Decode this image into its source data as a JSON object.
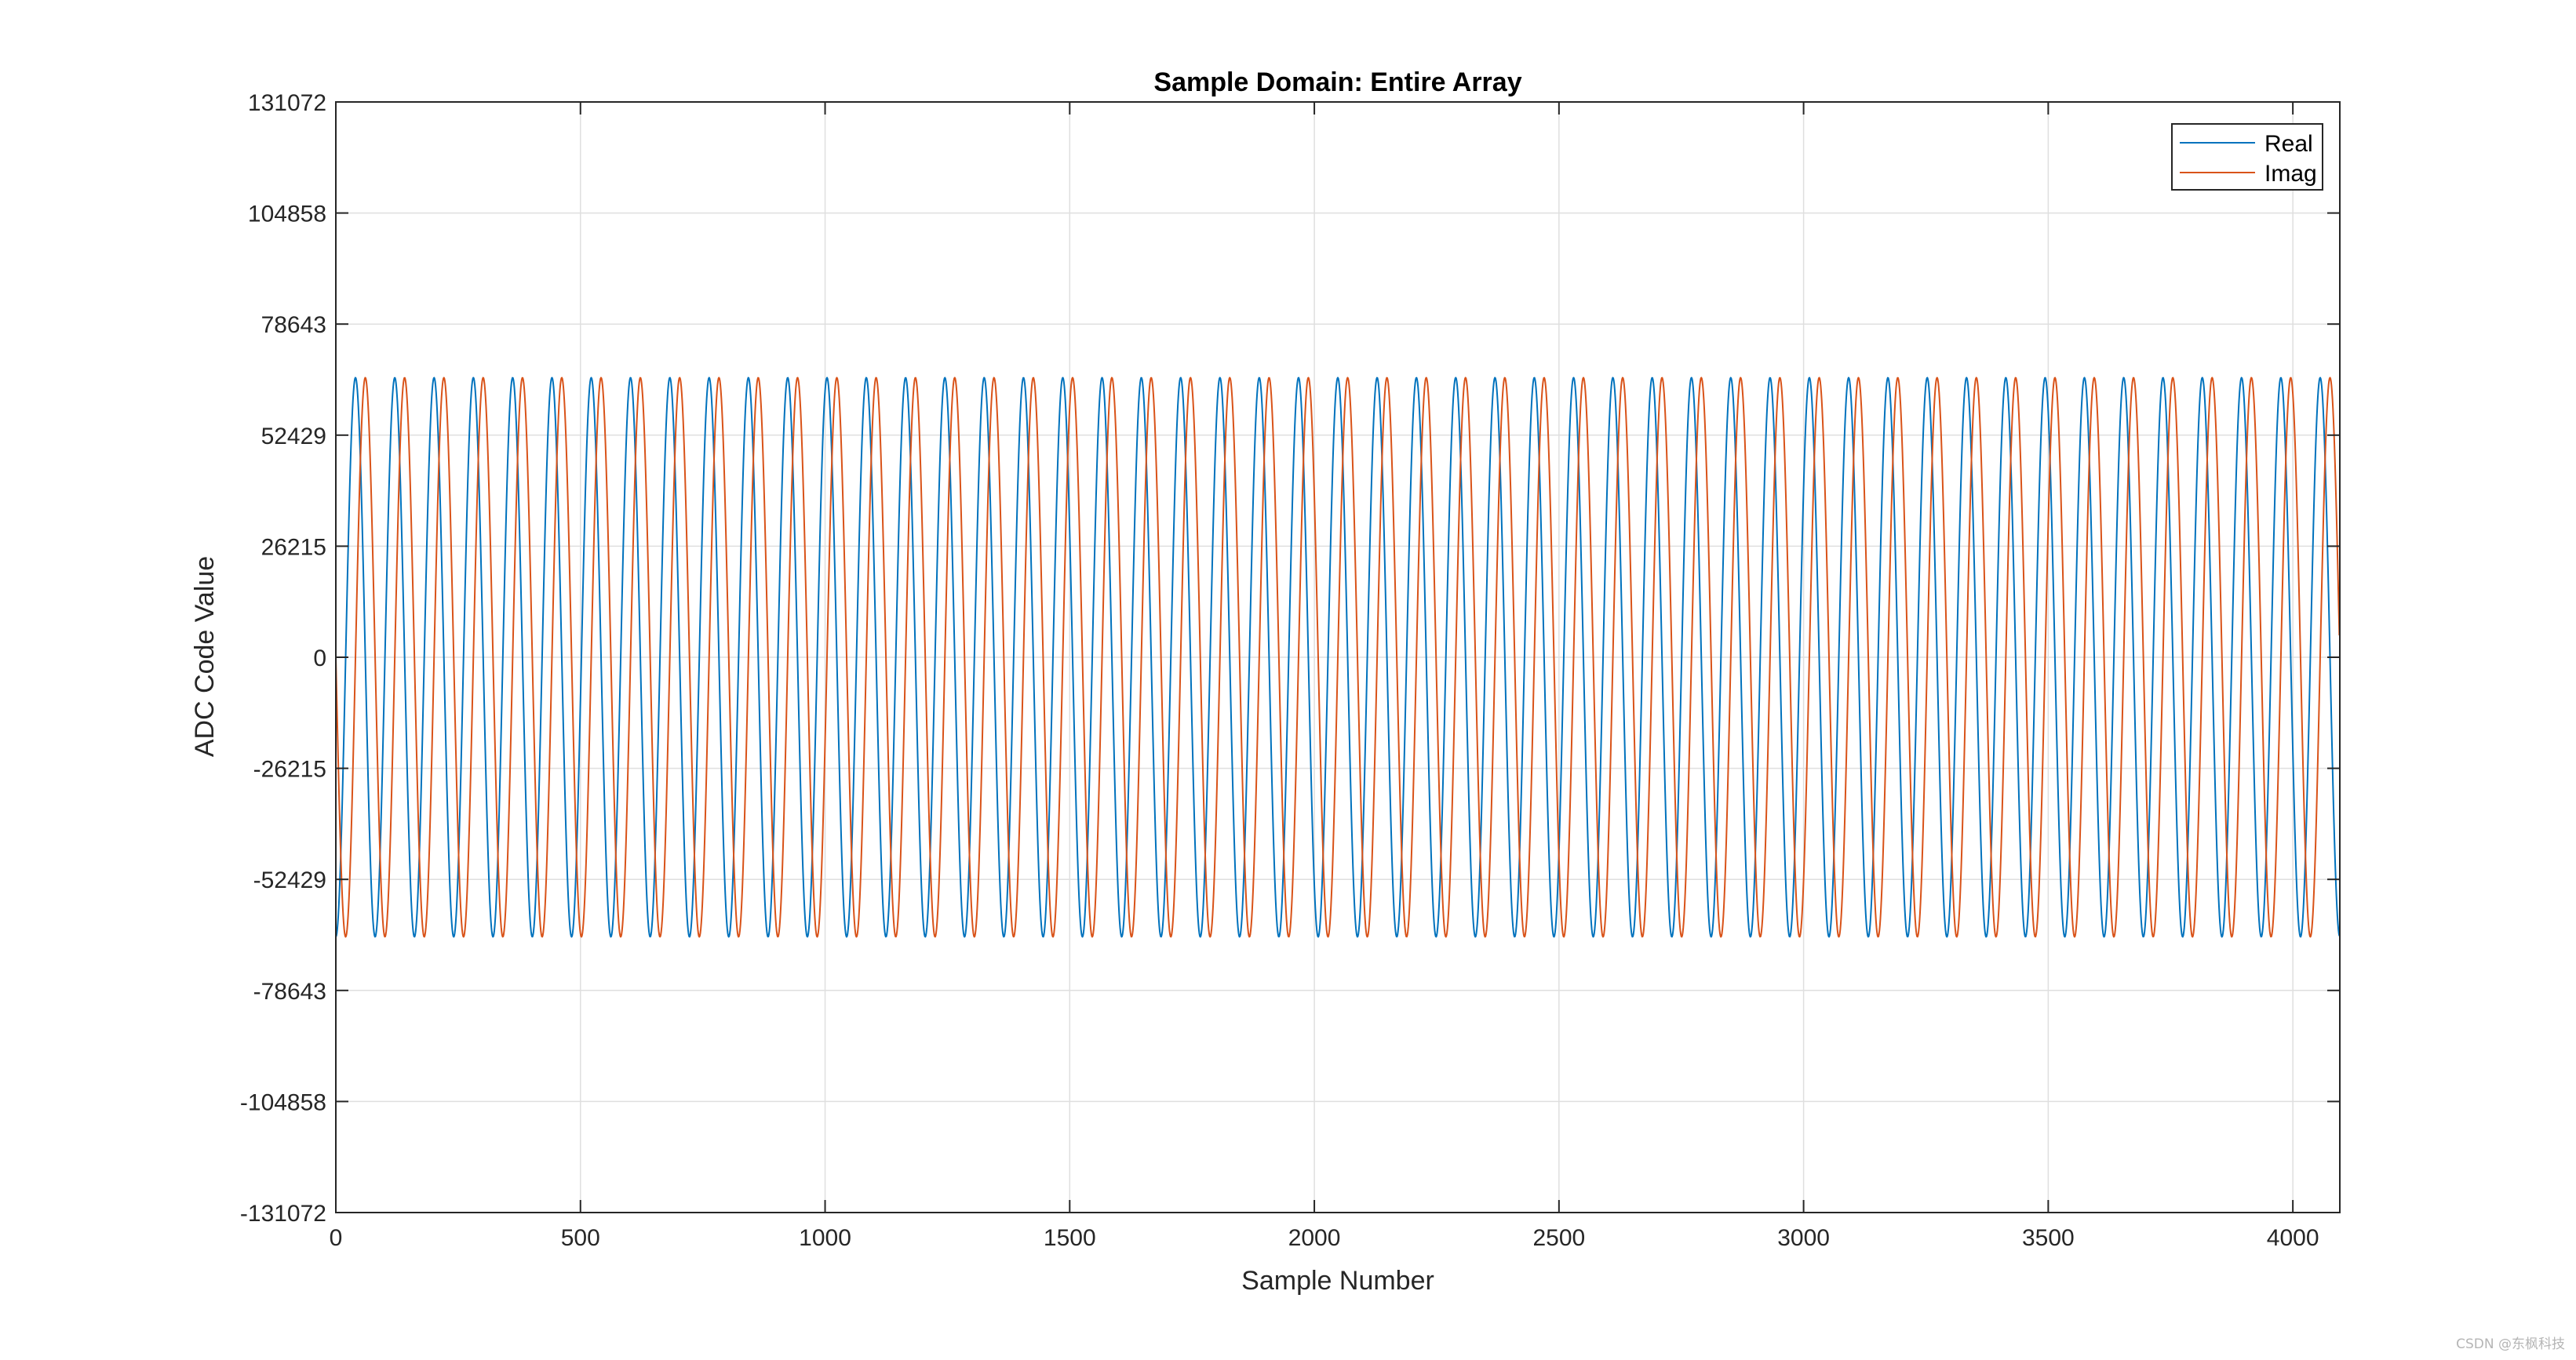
{
  "chart_data": {
    "type": "line",
    "title": "Sample Domain: Entire Array",
    "xlabel": "Sample Number",
    "ylabel": "ADC Code Value",
    "xlim": [
      0,
      4096
    ],
    "ylim": [
      -131072,
      131072
    ],
    "x_ticks": [
      0,
      500,
      1000,
      1500,
      2000,
      2500,
      3000,
      3500,
      4000
    ],
    "y_ticks": [
      -131072,
      -104858,
      -78643,
      -52429,
      -26215,
      0,
      26215,
      52429,
      78643,
      104858,
      131072
    ],
    "grid": true,
    "legend_position": "top-right",
    "series": [
      {
        "name": "Real",
        "color": "#0072BD",
        "amplitude": 66000,
        "cycles": 51,
        "phase_deg": 270,
        "x_start": 0,
        "x_end": 4095
      },
      {
        "name": "Imag",
        "color": "#D95319",
        "amplitude": 66000,
        "cycles": 51,
        "phase_deg": 180,
        "x_start": 0,
        "x_end": 4095
      }
    ]
  },
  "watermark": "CSDN @东枫科技"
}
